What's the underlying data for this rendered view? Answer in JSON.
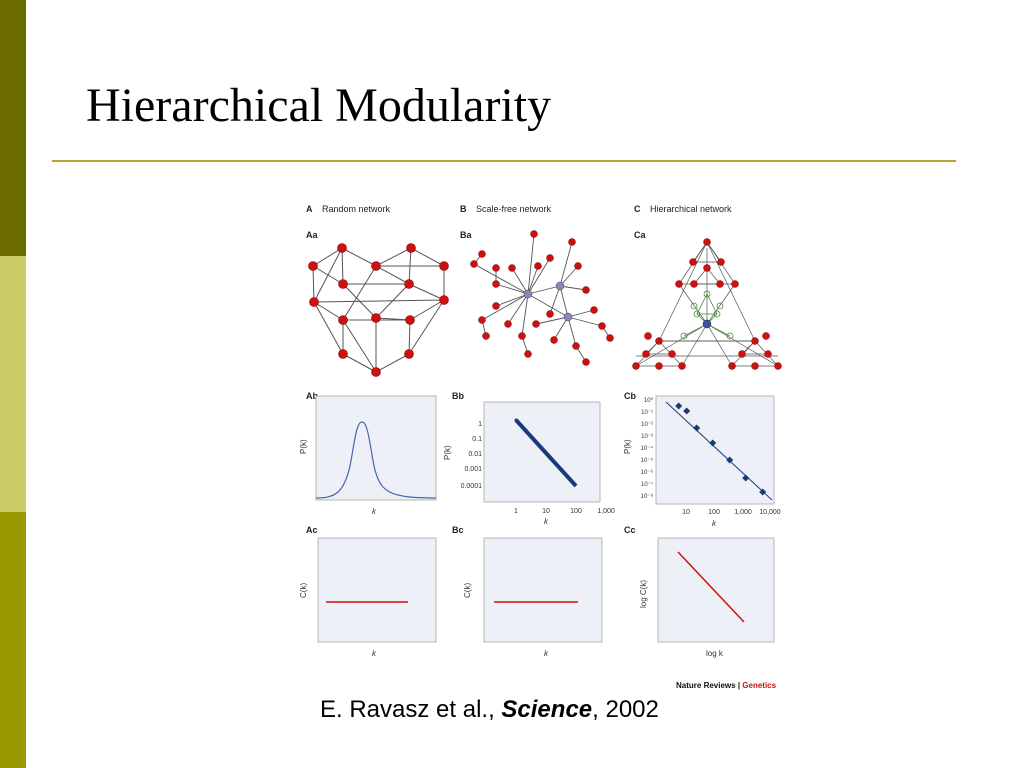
{
  "slide": {
    "title": "Hierarchical Modularity",
    "citation": {
      "authors": "E. Ravasz et al., ",
      "journal": "Science",
      "year": ", 2002"
    },
    "colors": {
      "sidebar_dark": "#6b6b00",
      "sidebar_light": "#cccc66",
      "sidebar_mid": "#999900",
      "rule": "#b5a830",
      "node": "#cc1111",
      "curve": "#4466aa",
      "points": "#1a3a7a",
      "line_red": "#cc1111"
    }
  },
  "figure": {
    "columns": [
      {
        "letter": "A",
        "title": "Random network"
      },
      {
        "letter": "B",
        "title": "Scale-free network"
      },
      {
        "letter": "C",
        "title": "Hierarchical network"
      }
    ],
    "panels": {
      "Aa": "Aa",
      "Ba": "Ba",
      "Ca": "Ca",
      "Ab": "Ab",
      "Bb": "Bb",
      "Cb": "Cb",
      "Ac": "Ac",
      "Bc": "Bc",
      "Cc": "Cc"
    },
    "axis_labels": {
      "Ab": {
        "x": "k",
        "y": "P(k)"
      },
      "Bb": {
        "x": "k",
        "y": "P(k)"
      },
      "Cb": {
        "x": "k",
        "y": "P(k)"
      },
      "Ac": {
        "x": "k",
        "y": "C(k)"
      },
      "Bc": {
        "x": "k",
        "y": "C(k)"
      },
      "Cc": {
        "x": "log k",
        "y": "log C(k)"
      }
    },
    "ticks": {
      "Bb_y": [
        "1",
        "0.1",
        "0.01",
        "0.001",
        "0.0001"
      ],
      "Bb_x": [
        "1",
        "10",
        "100",
        "1,000"
      ],
      "Cb_y": [
        "10⁰",
        "10⁻¹",
        "10⁻²",
        "10⁻³",
        "10⁻⁴",
        "10⁻⁵",
        "10⁻⁶",
        "10⁻⁷",
        "10⁻⁸"
      ],
      "Cb_x": [
        "10",
        "100",
        "1,000",
        "10,000"
      ]
    },
    "credit": {
      "journal": "Nature Reviews",
      "separator": " | ",
      "section": "Genetics"
    }
  }
}
